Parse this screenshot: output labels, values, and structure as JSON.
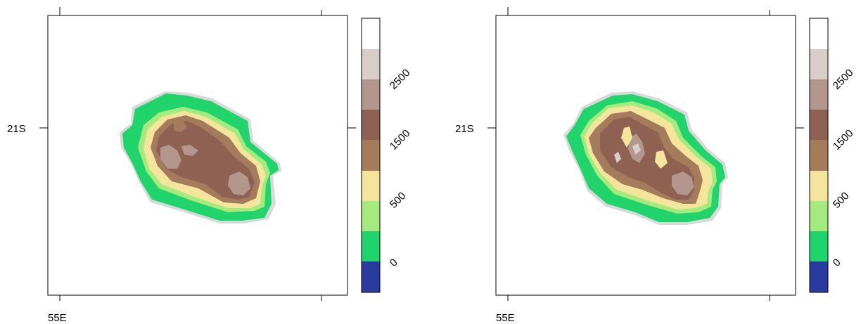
{
  "maps": [
    {
      "x_tick_label": "55E",
      "y_tick_label": "21S",
      "colorbar": {
        "labels": [
          "0",
          "500",
          "1500",
          "2500"
        ],
        "colors": [
          "#2B3A9E",
          "#1FD46A",
          "#A4EA7F",
          "#F5E49C",
          "#A47B5B",
          "#8E6153",
          "#B3978C",
          "#D9CDCA",
          "#FFFFFF"
        ]
      }
    },
    {
      "x_tick_label": "55E",
      "y_tick_label": "21S",
      "colorbar": {
        "labels": [
          "0",
          "500",
          "1500",
          "2500"
        ],
        "colors": [
          "#2B3A9E",
          "#1FD46A",
          "#A4EA7F",
          "#F5E49C",
          "#A47B5B",
          "#8E6153",
          "#B3978C",
          "#D9CDCA",
          "#FFFFFF"
        ]
      }
    }
  ]
}
